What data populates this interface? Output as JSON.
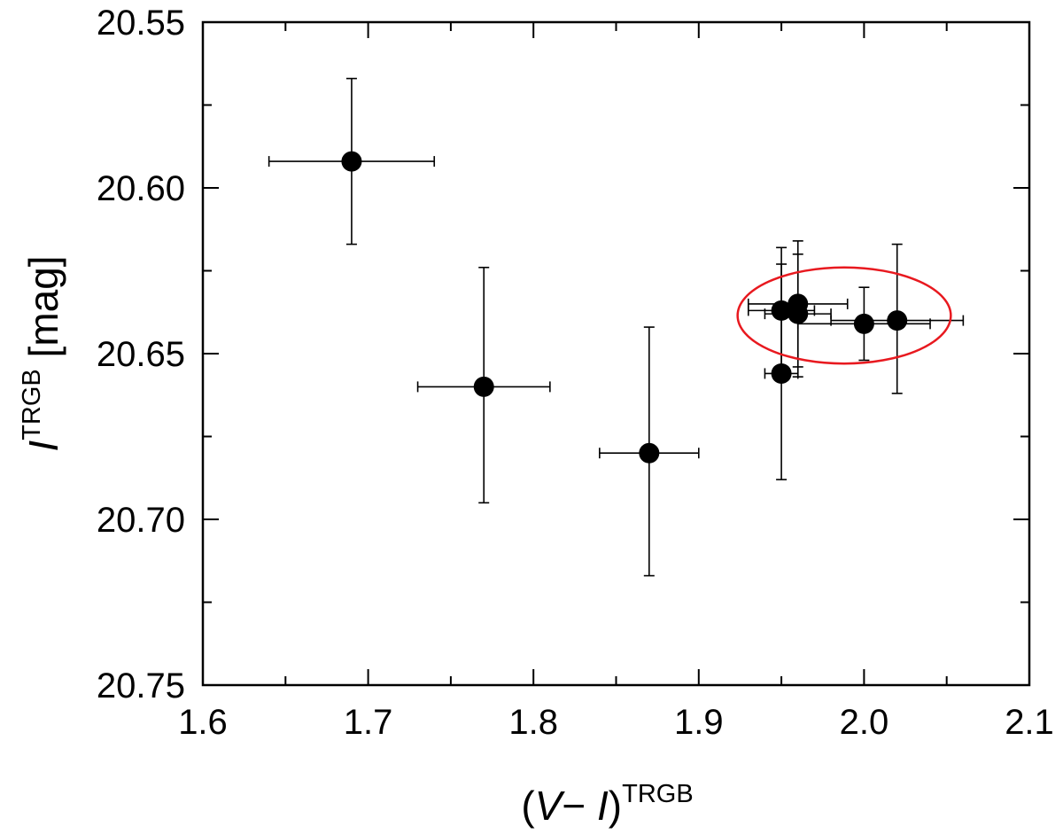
{
  "chart_data": {
    "type": "scatter",
    "title": "",
    "xlabel": {
      "open": "(",
      "v": "V",
      "dash": "− ",
      "i": "I",
      "close": ")",
      "sup": "TRGB"
    },
    "ylabel": {
      "main": "I",
      "sup": "TRGB",
      "unit": " [mag]"
    },
    "xlim": [
      1.6,
      2.1
    ],
    "ylim": [
      20.55,
      20.75
    ],
    "y_inverted": true,
    "grid": false,
    "x_ticks": [
      1.6,
      1.7,
      1.8,
      1.9,
      2.0,
      2.1
    ],
    "x_tick_labels": [
      "1.6",
      "1.7",
      "1.8",
      "1.9",
      "2.0",
      "2.1"
    ],
    "y_ticks": [
      20.55,
      20.6,
      20.65,
      20.7,
      20.75
    ],
    "y_tick_labels": [
      "20.55",
      "20.60",
      "20.65",
      "20.70",
      "20.75"
    ],
    "x_minor_ticks": [
      1.65,
      1.75,
      1.85,
      1.95,
      2.05
    ],
    "y_minor_ticks": [
      20.575,
      20.625,
      20.675,
      20.725
    ],
    "points": [
      {
        "x": 1.69,
        "y": 20.592,
        "xerr": 0.05,
        "yerr_low": 0.025,
        "yerr_high": 0.025
      },
      {
        "x": 1.77,
        "y": 20.66,
        "xerr": 0.04,
        "yerr_low": 0.035,
        "yerr_high": 0.036
      },
      {
        "x": 1.87,
        "y": 20.68,
        "xerr": 0.03,
        "yerr_low": 0.037,
        "yerr_high": 0.038
      },
      {
        "x": 1.95,
        "y": 20.637,
        "xerr": 0.02,
        "yerr_low": 0.021,
        "yerr_high": 0.019
      },
      {
        "x": 1.96,
        "y": 20.635,
        "xerr": 0.03,
        "yerr_low": 0.019,
        "yerr_high": 0.019
      },
      {
        "x": 1.96,
        "y": 20.638,
        "xerr": 0.02,
        "yerr_low": 0.019,
        "yerr_high": 0.018
      },
      {
        "x": 1.95,
        "y": 20.656,
        "xerr": 0.01,
        "yerr_low": 0.032,
        "yerr_high": 0.033
      },
      {
        "x": 2.0,
        "y": 20.641,
        "xerr": 0.04,
        "yerr_low": 0.011,
        "yerr_high": 0.011
      },
      {
        "x": 2.02,
        "y": 20.64,
        "xerr": 0.04,
        "yerr_low": 0.022,
        "yerr_high": 0.023
      }
    ],
    "highlight_ellipse": {
      "cx": 1.988,
      "cy": 20.6385,
      "rx": 0.0645,
      "ry": 0.0145,
      "color": "#e8191f"
    },
    "marker_color": "#000000"
  }
}
